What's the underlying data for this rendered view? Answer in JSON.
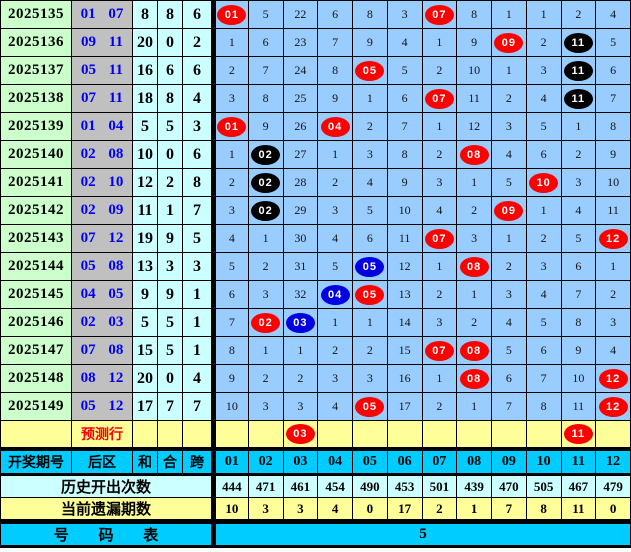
{
  "colors": {
    "red_ball": "#fe0000",
    "black_ball": "#000000",
    "blue_ball": "#0000e0",
    "grid_bg": "#99ccff",
    "period_bg": "#ccffcc",
    "zone_bg": "#c0c0c0",
    "stat_bg": "#ccffff",
    "header_bg": "#00ccff",
    "yellow_bg": "#ffff99",
    "zone_text": "#0000ee",
    "prediction_text": "#ff0000"
  },
  "chart_data": {
    "type": "table",
    "header": {
      "period": "开奖期号",
      "zone": "后区",
      "sum": "和",
      "tail": "合",
      "span": "跨",
      "balls": [
        "01",
        "02",
        "03",
        "04",
        "05",
        "06",
        "07",
        "08",
        "09",
        "10",
        "11",
        "12"
      ]
    },
    "rows": [
      {
        "period": "2025135",
        "zone": "01 07",
        "sum": "8",
        "tail": "8",
        "span": "6",
        "cells": [
          {
            "ball": "01",
            "color": "red"
          },
          "5",
          "22",
          "6",
          "8",
          "3",
          {
            "ball": "07",
            "color": "red"
          },
          "8",
          "1",
          "1",
          "2",
          "4"
        ]
      },
      {
        "period": "2025136",
        "zone": "09 11",
        "sum": "20",
        "tail": "0",
        "span": "2",
        "cells": [
          "1",
          "6",
          "23",
          "7",
          "9",
          "4",
          "1",
          "9",
          {
            "ball": "09",
            "color": "red"
          },
          "2",
          {
            "ball": "11",
            "color": "black"
          },
          "5"
        ]
      },
      {
        "period": "2025137",
        "zone": "05 11",
        "sum": "16",
        "tail": "6",
        "span": "6",
        "cells": [
          "2",
          "7",
          "24",
          "8",
          {
            "ball": "05",
            "color": "red"
          },
          "5",
          "2",
          "10",
          "1",
          "3",
          {
            "ball": "11",
            "color": "black"
          },
          "6"
        ]
      },
      {
        "period": "2025138",
        "zone": "07 11",
        "sum": "18",
        "tail": "8",
        "span": "4",
        "cells": [
          "3",
          "8",
          "25",
          "9",
          "1",
          "6",
          {
            "ball": "07",
            "color": "red"
          },
          "11",
          "2",
          "4",
          {
            "ball": "11",
            "color": "black"
          },
          "7"
        ]
      },
      {
        "period": "2025139",
        "zone": "01 04",
        "sum": "5",
        "tail": "5",
        "span": "3",
        "cells": [
          {
            "ball": "01",
            "color": "red"
          },
          "9",
          "26",
          {
            "ball": "04",
            "color": "red"
          },
          "2",
          "7",
          "1",
          "12",
          "3",
          "5",
          "1",
          "8"
        ]
      },
      {
        "period": "2025140",
        "zone": "02 08",
        "sum": "10",
        "tail": "0",
        "span": "6",
        "cells": [
          "1",
          {
            "ball": "02",
            "color": "black"
          },
          "27",
          "1",
          "3",
          "8",
          "2",
          {
            "ball": "08",
            "color": "red"
          },
          "4",
          "6",
          "2",
          "9"
        ]
      },
      {
        "period": "2025141",
        "zone": "02 10",
        "sum": "12",
        "tail": "2",
        "span": "8",
        "cells": [
          "2",
          {
            "ball": "02",
            "color": "black"
          },
          "28",
          "2",
          "4",
          "9",
          "3",
          "1",
          "5",
          {
            "ball": "10",
            "color": "red"
          },
          "3",
          "10"
        ]
      },
      {
        "period": "2025142",
        "zone": "02 09",
        "sum": "11",
        "tail": "1",
        "span": "7",
        "cells": [
          "3",
          {
            "ball": "02",
            "color": "black"
          },
          "29",
          "3",
          "5",
          "10",
          "4",
          "2",
          {
            "ball": "09",
            "color": "red"
          },
          "1",
          "4",
          "11"
        ]
      },
      {
        "period": "2025143",
        "zone": "07 12",
        "sum": "19",
        "tail": "9",
        "span": "5",
        "cells": [
          "4",
          "1",
          "30",
          "4",
          "6",
          "11",
          {
            "ball": "07",
            "color": "red"
          },
          "3",
          "1",
          "2",
          "5",
          {
            "ball": "12",
            "color": "red"
          }
        ]
      },
      {
        "period": "2025144",
        "zone": "05 08",
        "sum": "13",
        "tail": "3",
        "span": "3",
        "cells": [
          "5",
          "2",
          "31",
          "5",
          {
            "ball": "05",
            "color": "blue"
          },
          "12",
          "1",
          {
            "ball": "08",
            "color": "red"
          },
          "2",
          "3",
          "6",
          "1"
        ]
      },
      {
        "period": "2025145",
        "zone": "04 05",
        "sum": "9",
        "tail": "9",
        "span": "1",
        "cells": [
          "6",
          "3",
          "32",
          {
            "ball": "04",
            "color": "blue"
          },
          {
            "ball": "05",
            "color": "red"
          },
          "13",
          "2",
          "1",
          "3",
          "4",
          "7",
          "2"
        ]
      },
      {
        "period": "2025146",
        "zone": "02 03",
        "sum": "5",
        "tail": "5",
        "span": "1",
        "cells": [
          "7",
          {
            "ball": "02",
            "color": "red"
          },
          {
            "ball": "03",
            "color": "blue"
          },
          "1",
          "1",
          "14",
          "3",
          "2",
          "4",
          "5",
          "8",
          "3"
        ]
      },
      {
        "period": "2025147",
        "zone": "07 08",
        "sum": "15",
        "tail": "5",
        "span": "1",
        "cells": [
          "8",
          "1",
          "1",
          "2",
          "2",
          "15",
          {
            "ball": "07",
            "color": "red"
          },
          {
            "ball": "08",
            "color": "red"
          },
          "5",
          "6",
          "9",
          "4"
        ]
      },
      {
        "period": "2025148",
        "zone": "08 12",
        "sum": "20",
        "tail": "0",
        "span": "4",
        "cells": [
          "9",
          "2",
          "2",
          "3",
          "3",
          "16",
          "1",
          {
            "ball": "08",
            "color": "red"
          },
          "6",
          "7",
          "10",
          {
            "ball": "12",
            "color": "red"
          }
        ]
      },
      {
        "period": "2025149",
        "zone": "05 12",
        "sum": "17",
        "tail": "7",
        "span": "7",
        "cells": [
          "10",
          "3",
          "3",
          "4",
          {
            "ball": "05",
            "color": "red"
          },
          "17",
          "2",
          "1",
          "7",
          "8",
          "11",
          {
            "ball": "12",
            "color": "red"
          }
        ]
      }
    ],
    "prediction": {
      "label": "预测行",
      "cells": [
        "",
        "",
        {
          "ball": "03",
          "color": "red"
        },
        "",
        "",
        "",
        "",
        "",
        "",
        "",
        {
          "ball": "11",
          "color": "red"
        },
        ""
      ]
    },
    "history": {
      "label": "历史开出次数",
      "values": [
        "444",
        "471",
        "461",
        "454",
        "490",
        "453",
        "501",
        "439",
        "470",
        "505",
        "467",
        "479"
      ]
    },
    "omission": {
      "label": "当前遗漏期数",
      "values": [
        "10",
        "3",
        "3",
        "4",
        "0",
        "17",
        "2",
        "1",
        "7",
        "8",
        "11",
        "0"
      ]
    },
    "footer": {
      "label": "号 码 表",
      "value": "5"
    }
  }
}
